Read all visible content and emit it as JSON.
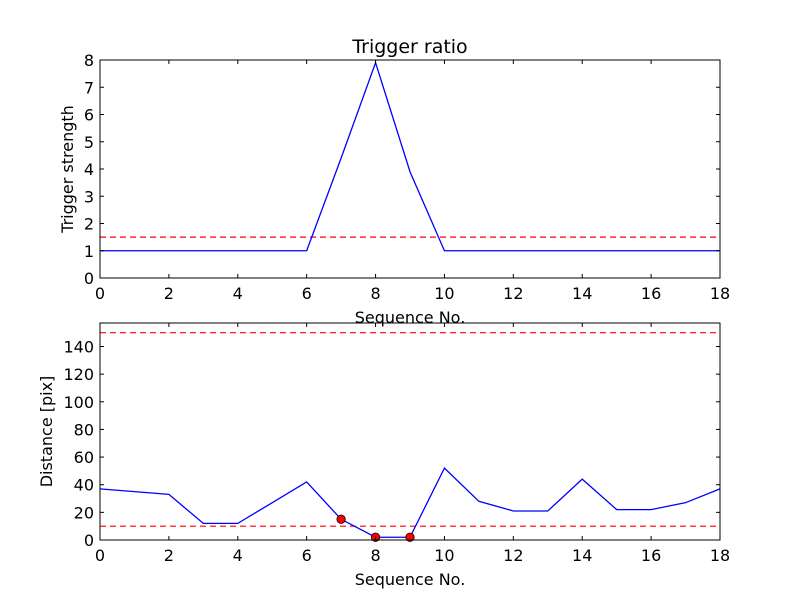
{
  "chart_data": [
    {
      "type": "line",
      "title": "Trigger ratio",
      "xlabel": "Sequence No.",
      "ylabel": "Trigger strength",
      "xlim": [
        0,
        18
      ],
      "ylim": [
        0,
        8
      ],
      "xticks": [
        0,
        2,
        4,
        6,
        8,
        10,
        12,
        14,
        16,
        18
      ],
      "yticks": [
        0,
        1,
        2,
        3,
        4,
        5,
        6,
        7,
        8
      ],
      "grid": false,
      "series": [
        {
          "color": "#0000ff",
          "x": [
            0,
            1,
            2,
            3,
            4,
            5,
            6,
            7,
            8,
            9,
            10,
            11,
            12,
            13,
            14,
            15,
            16,
            17,
            18
          ],
          "values": [
            1,
            1,
            1,
            1,
            1,
            1,
            1,
            4.4,
            7.9,
            3.9,
            1,
            1,
            1,
            1,
            1,
            1,
            1,
            1,
            1
          ]
        }
      ],
      "threshold_lines": [
        {
          "y": 1.5,
          "color": "#ff0000",
          "style": "dashed"
        }
      ]
    },
    {
      "type": "line",
      "title": "",
      "xlabel": "Sequence No.",
      "ylabel": "Distance [pix]",
      "xlim": [
        0,
        18
      ],
      "ylim": [
        0,
        157
      ],
      "xticks": [
        0,
        2,
        4,
        6,
        8,
        10,
        12,
        14,
        16,
        18
      ],
      "yticks": [
        0,
        20,
        40,
        60,
        80,
        100,
        120,
        140
      ],
      "grid": false,
      "series": [
        {
          "color": "#0000ff",
          "x": [
            0,
            1,
            2,
            3,
            4,
            5,
            6,
            7,
            8,
            9,
            10,
            11,
            12,
            13,
            14,
            15,
            16,
            17,
            18
          ],
          "values": [
            37,
            35,
            33,
            12,
            12,
            27,
            42,
            15,
            2,
            2,
            52,
            28,
            21,
            21,
            44,
            22,
            22,
            27,
            37
          ]
        }
      ],
      "markers": {
        "color": "#ff0000",
        "x": [
          7,
          8,
          9
        ],
        "values": [
          15,
          2,
          2
        ]
      },
      "threshold_lines": [
        {
          "y": 150,
          "color": "#ff0000",
          "style": "dashed"
        },
        {
          "y": 10,
          "color": "#ff0000",
          "style": "dashed"
        }
      ]
    }
  ]
}
